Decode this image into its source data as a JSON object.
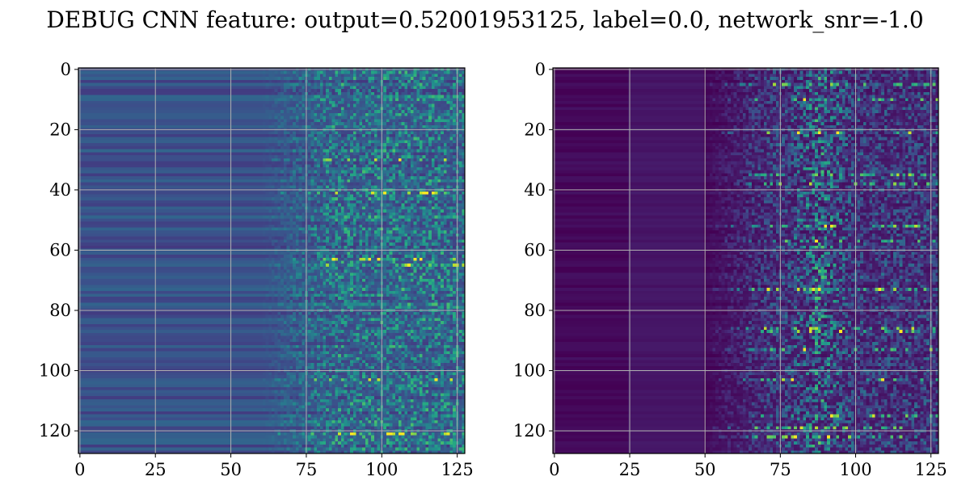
{
  "figure": {
    "title": "DEBUG CNN feature: output=0.52001953125, label=0.0, network_snr=-1.0"
  },
  "chart_data": [
    {
      "type": "heatmap",
      "colormap": "viridis",
      "grid": true,
      "rows": 128,
      "cols": 128,
      "xlim": [
        -0.5,
        127.5
      ],
      "ylim": [
        127.5,
        -0.5
      ],
      "xticks": [
        0,
        25,
        50,
        75,
        100,
        125
      ],
      "yticks": [
        0,
        20,
        40,
        60,
        80,
        100,
        120
      ],
      "xtick_labels": [
        "0",
        "25",
        "50",
        "75",
        "100",
        "125"
      ],
      "ytick_labels": [
        "0",
        "20",
        "40",
        "60",
        "80",
        "100",
        "120"
      ],
      "base_level": 0.25,
      "noise_start_col": 60,
      "noise_full_col": 85,
      "noise_amplitude": 0.45,
      "hot_rows": [
        30,
        41,
        63,
        65,
        103,
        121
      ],
      "row_band_strength": 0.08,
      "seed": 7
    },
    {
      "type": "heatmap",
      "colormap": "viridis",
      "grid": true,
      "rows": 128,
      "cols": 128,
      "xlim": [
        -0.5,
        127.5
      ],
      "ylim": [
        127.5,
        -0.5
      ],
      "xticks": [
        0,
        25,
        50,
        75,
        100,
        125
      ],
      "yticks": [
        0,
        20,
        40,
        60,
        80,
        100,
        120
      ],
      "xtick_labels": [
        "0",
        "25",
        "50",
        "75",
        "100",
        "125"
      ],
      "ytick_labels": [
        "0",
        "20",
        "40",
        "60",
        "80",
        "100",
        "120"
      ],
      "base_level": 0.02,
      "band_col_start": 25,
      "band_col_end": 50,
      "band_level": 0.06,
      "noise_start_col": 50,
      "noise_full_col": 72,
      "noise_amplitude": 0.32,
      "hot_col_center": 88,
      "hot_col_width": 12,
      "hot_rows": [
        5,
        10,
        21,
        35,
        38,
        52,
        57,
        73,
        86,
        87,
        93,
        103,
        115,
        119,
        122
      ],
      "row_band_strength": 0.03,
      "seed": 19
    }
  ]
}
